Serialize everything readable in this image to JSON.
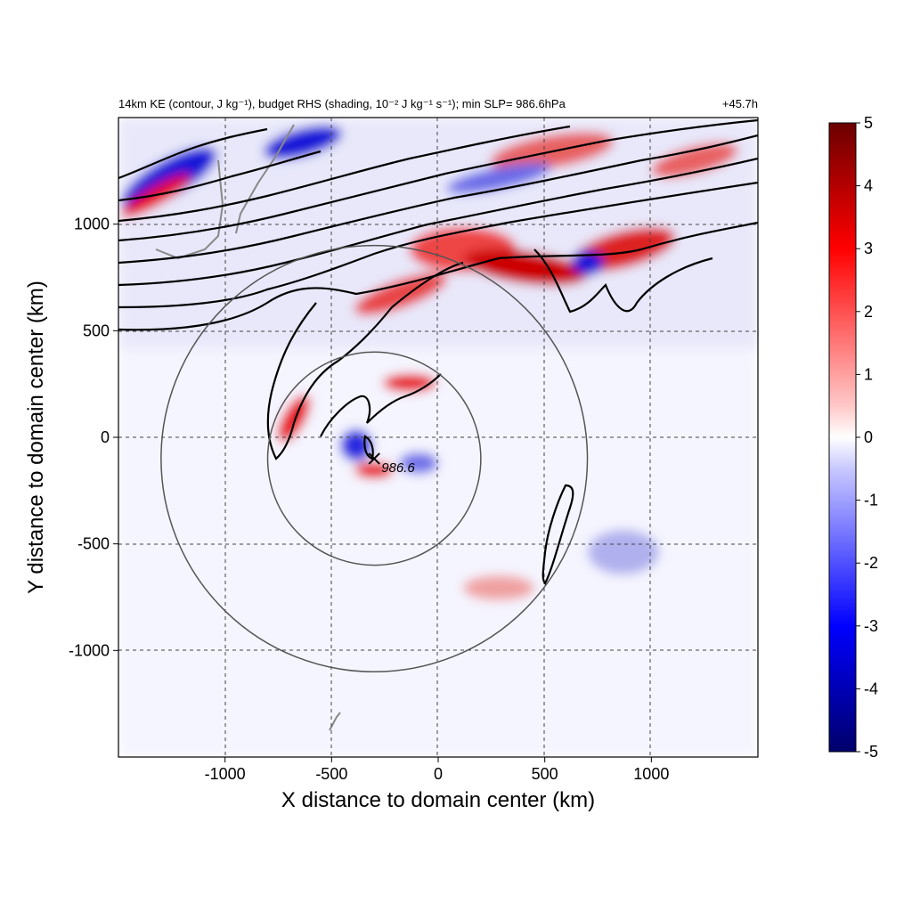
{
  "title_left": "14km KE (contour, J kg⁻¹), budget RHS (shading, 10⁻² J kg⁻¹ s⁻¹); min SLP= 986.6hPa",
  "title_right": "+45.7h",
  "colors": {
    "frame": "#000000",
    "contour": "#000000",
    "ring": "#555555",
    "coast": "#888888",
    "red": "#e8000b",
    "blue": "#1515d8",
    "dark_red": "#6b0000",
    "dark_blue": "#00006b"
  },
  "chart_data": {
    "type": "heatmap",
    "xlabel": "X distance to domain center (km)",
    "ylabel": "Y distance to domain center (km)",
    "xlim": [
      -1500,
      1500
    ],
    "ylim": [
      -1500,
      1500
    ],
    "xticks": [
      -1000,
      -500,
      0,
      500,
      1000
    ],
    "xtick_labels": [
      "-1000",
      "-500",
      "0",
      "500",
      "1000"
    ],
    "yticks": [
      -1000,
      -500,
      0,
      500,
      1000
    ],
    "ytick_labels": [
      "-1000",
      "-500",
      "0",
      "500",
      "1000"
    ],
    "grid": "dashed",
    "colorbar": {
      "min": -5,
      "max": 5,
      "ticks": [
        5,
        4,
        3,
        2,
        1,
        0,
        -1,
        -2,
        -3,
        -4,
        -5
      ],
      "tick_labels": [
        "5",
        "4",
        "3",
        "2",
        "1",
        "0",
        "-1",
        "-2",
        "-3",
        "-4",
        "-5"
      ],
      "colormap": "blue-white-red"
    },
    "storm_center": {
      "x": -300,
      "y": -100,
      "marker": "x",
      "label": "986.6"
    },
    "rings_km": [
      {
        "x": -300,
        "y": -100,
        "radius": 500
      },
      {
        "x": -300,
        "y": -100,
        "radius": 1000
      }
    ]
  }
}
